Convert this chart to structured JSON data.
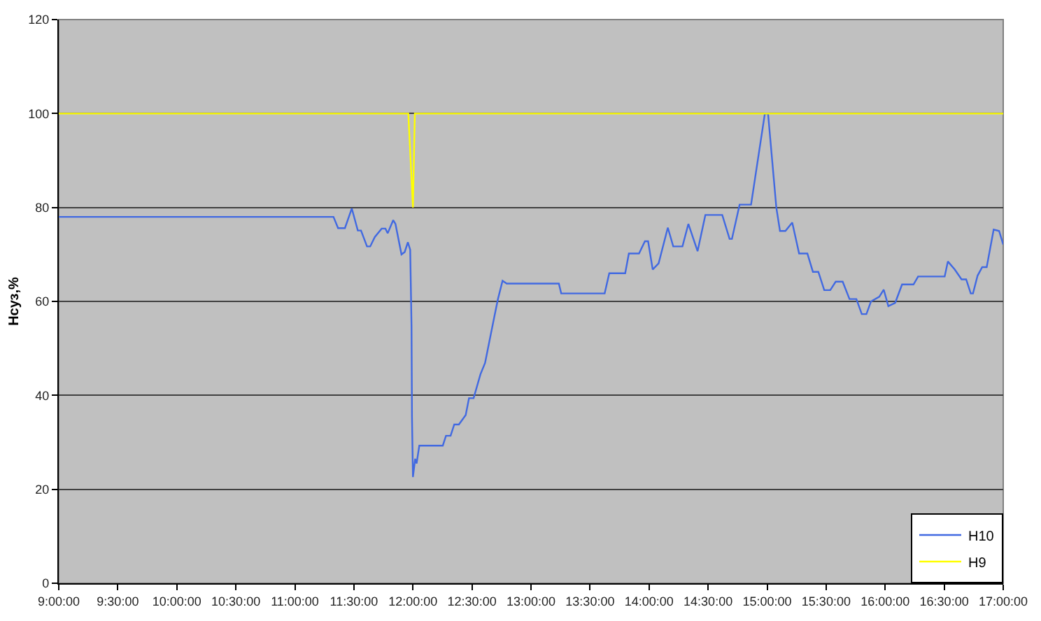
{
  "chart_data": {
    "type": "line",
    "ylabel": "Нсуз,%",
    "xlim": [
      9,
      17
    ],
    "xticks": [
      {
        "value": 9,
        "label": "9:00:00"
      },
      {
        "value": 9.5,
        "label": "9:30:00"
      },
      {
        "value": 10,
        "label": "10:00:00"
      },
      {
        "value": 10.5,
        "label": "10:30:00"
      },
      {
        "value": 11,
        "label": "11:00:00"
      },
      {
        "value": 11.5,
        "label": "11:30:00"
      },
      {
        "value": 12,
        "label": "12:00:00"
      },
      {
        "value": 12.5,
        "label": "12:30:00"
      },
      {
        "value": 13,
        "label": "13:00:00"
      },
      {
        "value": 13.5,
        "label": "13:30:00"
      },
      {
        "value": 14,
        "label": "14:00:00"
      },
      {
        "value": 14.5,
        "label": "14:30:00"
      },
      {
        "value": 15,
        "label": "15:00:00"
      },
      {
        "value": 15.5,
        "label": "15:30:00"
      },
      {
        "value": 16,
        "label": "16:00:00"
      },
      {
        "value": 16.5,
        "label": "16:30:00"
      },
      {
        "value": 17,
        "label": "17:00:00"
      }
    ],
    "ylim": [
      0,
      120
    ],
    "yticks": [
      0,
      20,
      40,
      60,
      80,
      100,
      120
    ],
    "grid": "y",
    "legend": "bottom right",
    "line_style": "solid",
    "series": [
      {
        "name": "H10",
        "color": "#4169e1",
        "x": [
          9,
          11.327,
          11.366,
          11.424,
          11.482,
          11.533,
          11.56,
          11.611,
          11.638,
          11.677,
          11.735,
          11.767,
          11.786,
          11.833,
          11.852,
          11.903,
          11.93,
          11.957,
          11.977,
          11.988,
          11.992,
          12.0,
          12.019,
          12.031,
          12.054,
          12.253,
          12.28,
          12.319,
          12.35,
          12.389,
          12.447,
          12.475,
          12.514,
          12.572,
          12.611,
          12.65,
          12.689,
          12.72,
          12.759,
          12.794,
          13.236,
          13.256,
          13.624,
          13.663,
          13.798,
          13.829,
          13.915,
          13.965,
          13.992,
          14.031,
          14.081,
          14.159,
          14.205,
          14.283,
          14.333,
          14.411,
          14.477,
          14.62,
          14.682,
          14.702,
          14.767,
          14.864,
          14.981,
          15.008,
          15.078,
          15.109,
          15.155,
          15.213,
          15.271,
          15.341,
          15.388,
          15.434,
          15.484,
          15.535,
          15.581,
          15.64,
          15.698,
          15.756,
          15.802,
          15.841,
          15.88,
          15.95,
          15.988,
          16.027,
          16.085,
          16.143,
          16.24,
          16.279,
          16.504,
          16.531,
          16.589,
          16.647,
          16.686,
          16.725,
          16.744,
          16.783,
          16.822,
          16.86,
          16.919,
          16.965,
          17.0
        ],
        "values": [
          78,
          78,
          75.6,
          75.6,
          79.8,
          75.1,
          75.1,
          71.7,
          71.7,
          73.7,
          75.5,
          75.5,
          74.5,
          77.3,
          76.5,
          70,
          70.5,
          72.6,
          71,
          54.7,
          35.3,
          22.6,
          26.5,
          25.5,
          29.3,
          29.3,
          31.4,
          31.4,
          33.8,
          33.8,
          35.8,
          39.4,
          39.4,
          44.5,
          46.9,
          51.8,
          56.7,
          60.5,
          64.4,
          63.8,
          63.8,
          61.7,
          61.7,
          66.0,
          66.0,
          70.2,
          70.2,
          72.8,
          72.8,
          66.8,
          68.1,
          75.7,
          71.7,
          71.7,
          76.5,
          70.7,
          78.4,
          78.4,
          73.3,
          73.3,
          80.6,
          80.6,
          100,
          100,
          80,
          75.0,
          75.0,
          76.8,
          70.2,
          70.2,
          66.3,
          66.3,
          62.4,
          62.4,
          64.2,
          64.2,
          60.5,
          60.5,
          57.3,
          57.3,
          60,
          61,
          62.5,
          59.0,
          59.7,
          63.6,
          63.6,
          65.3,
          65.3,
          68.5,
          66.8,
          64.7,
          64.7,
          61.7,
          61.7,
          65.5,
          67.3,
          67.3,
          75.3,
          75.0,
          72.1
        ]
      },
      {
        "name": "H9",
        "color": "#ffff00",
        "x": [
          9,
          11.961,
          12.0,
          12.016,
          17
        ],
        "values": [
          100,
          100,
          80,
          100,
          100
        ]
      }
    ]
  }
}
